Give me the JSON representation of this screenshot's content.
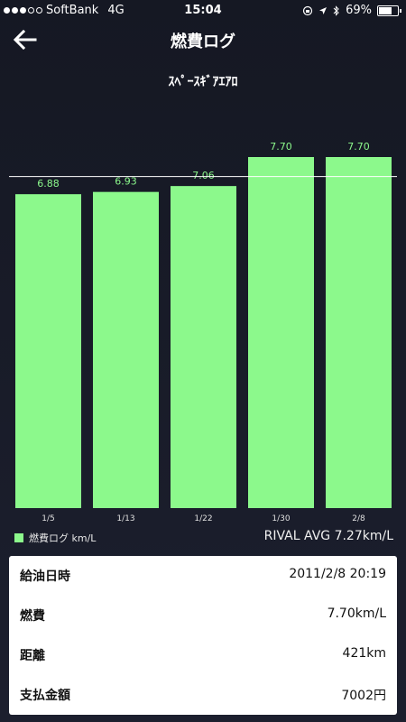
{
  "status_bar": {
    "carrier": "SoftBank",
    "network": "4G",
    "time": "15:04",
    "battery": "69%",
    "battery_level": 0.69
  },
  "nav": {
    "title": "燃費ログ",
    "back_icon": "arrow-left-icon"
  },
  "subtitle": "ｽﾍﾟｰｽｷﾞｱｴｱﾛ",
  "colors": {
    "bar": "#8cf98c",
    "value_label": "#8cf98c",
    "background": "#171a26",
    "rival_line": "#ffffff"
  },
  "chart_data": {
    "type": "bar",
    "categories": [
      "1/5",
      "1/13",
      "1/22",
      "1/30",
      "2/8"
    ],
    "values": [
      6.88,
      6.93,
      7.06,
      7.7,
      7.7
    ],
    "value_labels": [
      "6.88",
      "6.93",
      "7.06",
      "7.70",
      "7.70"
    ],
    "reference_line": 7.27,
    "legend": "燃費ログ km/L",
    "legend_position": "bottom-left"
  },
  "rival_avg": "RIVAL AVG 7.27km/L",
  "details": [
    {
      "label": "給油日時",
      "value": "2011/2/8 20:19"
    },
    {
      "label": "燃費",
      "value": "7.70km/L"
    },
    {
      "label": "距離",
      "value": "421km"
    },
    {
      "label": "支払金額",
      "value": "7002円"
    }
  ]
}
